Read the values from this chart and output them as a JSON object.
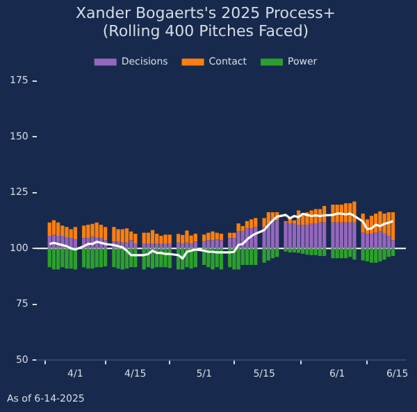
{
  "chart_data": {
    "type": "bar",
    "title": "Xander Bogaerts's 2025 Process+\n(Rolling 400 Pitches Faced)",
    "legend": "top",
    "x": [
      "--03-26",
      "--03-27",
      "--03-28",
      "--03-29",
      "--03-30",
      "--03-31",
      "--04-01",
      "--04-03",
      "--04-04",
      "--04-05",
      "--04-06",
      "--04-07",
      "--04-08",
      "--04-10",
      "--04-11",
      "--04-12",
      "--04-13",
      "--04-14",
      "--04-15",
      "--04-17",
      "--04-18",
      "--04-19",
      "--04-20",
      "--04-21",
      "--04-22",
      "--04-23",
      "--04-25",
      "--04-26",
      "--04-27",
      "--04-28",
      "--04-29",
      "--05-01",
      "--05-02",
      "--05-03",
      "--05-04",
      "--05-05",
      "--05-07",
      "--05-08",
      "--05-09",
      "--05-10",
      "--05-11",
      "--05-12",
      "--05-13",
      "--05-15",
      "--05-16",
      "--05-17",
      "--05-18",
      "--05-20",
      "--05-21",
      "--05-22",
      "--05-23",
      "--05-24",
      "--05-25",
      "--05-26",
      "--05-27",
      "--05-28",
      "--05-29",
      "--05-31",
      "--06-01",
      "--06-02",
      "--06-03",
      "--06-04",
      "--06-05",
      "--06-07",
      "--06-08",
      "--06-09",
      "--06-10",
      "--06-11",
      "--06-12",
      "--06-13",
      "--06-14"
    ],
    "series": [
      {
        "name": "Decisions",
        "color": "#9467bd",
        "base": [
          100,
          100,
          100,
          100,
          100,
          100,
          100,
          100,
          100,
          100,
          100,
          100,
          100,
          100,
          100,
          100,
          100,
          100,
          100,
          100,
          100,
          100,
          100,
          100,
          100,
          100,
          100,
          100,
          100,
          100,
          100,
          100,
          100,
          100,
          100,
          100,
          100,
          100,
          100,
          100,
          100,
          100,
          100,
          100,
          100,
          100,
          100,
          100,
          100,
          100,
          100,
          100,
          100,
          100,
          100,
          100,
          100,
          100,
          100,
          100,
          100,
          100,
          100,
          100,
          100,
          100,
          100,
          100,
          100,
          100,
          100
        ],
        "values": [
          5.6,
          6,
          5.6,
          5.6,
          5,
          4.6,
          4,
          4.6,
          4.6,
          5.2,
          5,
          4.6,
          3.6,
          3,
          3,
          2.6,
          2.6,
          3.6,
          2.2,
          2,
          2,
          2.2,
          2,
          2,
          2,
          2,
          2.6,
          2,
          2.6,
          2,
          3,
          3.2,
          3.6,
          3.6,
          4,
          3.6,
          4.6,
          4.6,
          7.6,
          7.6,
          9,
          9,
          9.6,
          9.6,
          11,
          12.2,
          12.6,
          11.6,
          11,
          11,
          10.6,
          10.6,
          10.6,
          11,
          11,
          11.6,
          11.6,
          11.6,
          11.6,
          11.6,
          11.6,
          11.6,
          11.6,
          7,
          6.6,
          6.6,
          7,
          7.6,
          6.6,
          5.6,
          3.6
        ]
      },
      {
        "name": "Contact",
        "color": "#ff7f0e",
        "base": [
          105.6,
          106,
          105.6,
          105.6,
          105,
          104.6,
          104,
          104.6,
          104.6,
          105.2,
          105,
          104.6,
          103.6,
          103,
          103,
          102.6,
          102.6,
          103.6,
          102.2,
          102,
          102,
          102.2,
          102,
          102,
          102,
          102,
          102.6,
          102,
          102.6,
          102,
          103,
          103.2,
          103.6,
          103.6,
          104,
          103.6,
          104.6,
          104.6,
          107.6,
          107.6,
          109,
          109,
          109.6,
          109.6,
          111,
          112.2,
          112.6,
          111.6,
          111,
          111,
          110.6,
          110.6,
          110.6,
          111,
          111,
          111.6,
          111.6,
          111.6,
          111.6,
          111.6,
          111.6,
          111.6,
          111.6,
          107,
          106.6,
          106.6,
          107,
          107.6,
          106.6,
          105.6,
          103.6
        ],
        "values": [
          6,
          6.6,
          6,
          4.6,
          4.6,
          4,
          5.6,
          5.6,
          6,
          5.8,
          6.6,
          6,
          6,
          6.6,
          5.6,
          6,
          6.4,
          4,
          4.4,
          5,
          5,
          6,
          4.6,
          3.6,
          4.2,
          4.2,
          3.9,
          4,
          5.4,
          3.8,
          3.6,
          3,
          3.4,
          4,
          3,
          3,
          2.4,
          2.4,
          3.6,
          2.4,
          3.2,
          4,
          4,
          4,
          5.2,
          4,
          3.6,
          0.6,
          2.6,
          1.6,
          6.4,
          5,
          5.6,
          6,
          6.6,
          6,
          7.4,
          8,
          8,
          8,
          8.6,
          8.6,
          9.4,
          8.6,
          6.4,
          8,
          8.6,
          9,
          9,
          10.6,
          12.6
        ]
      },
      {
        "name": "Power",
        "color": "#2ca02c",
        "base": [
          100,
          100,
          100,
          100,
          100,
          100,
          100,
          100,
          100,
          100,
          100,
          100,
          100,
          100,
          100,
          100,
          100,
          100,
          100,
          100,
          100,
          100,
          100,
          100,
          100,
          100,
          100,
          100,
          100,
          100,
          100,
          100,
          100,
          100,
          100,
          100,
          100,
          100,
          100,
          100,
          100,
          100,
          100,
          100,
          100,
          100,
          100,
          100,
          100,
          100,
          100,
          100,
          100,
          100,
          100,
          100,
          100,
          100,
          100,
          100,
          100,
          100,
          100,
          100,
          100,
          100,
          100,
          100,
          100,
          100,
          100
        ],
        "values": [
          -8.4,
          -9.4,
          -9.4,
          -8.4,
          -9,
          -9,
          -9.4,
          -8.4,
          -9,
          -9,
          -8.4,
          -8.4,
          -8,
          -8.4,
          -9,
          -9.4,
          -9,
          -8.4,
          -8.4,
          -9.4,
          -8.4,
          -9,
          -8.4,
          -8.4,
          -8.4,
          -8.8,
          -9.4,
          -9.4,
          -8.4,
          -9,
          -8.4,
          -7.4,
          -8.4,
          -9.4,
          -8.4,
          -9.4,
          -8.4,
          -9.4,
          -9.4,
          -7.4,
          -7.4,
          -7.4,
          -7.4,
          -6.4,
          -5.4,
          -4.4,
          -3.8,
          -1.4,
          -1.8,
          -1.8,
          -2,
          -2.4,
          -2.8,
          -3,
          -3,
          -3.4,
          -3.4,
          -4.4,
          -4.4,
          -4.4,
          -4.4,
          -3.8,
          -5,
          -5.4,
          -5.8,
          -6.4,
          -6.4,
          -5.8,
          -5,
          -3.8,
          -3.4
        ]
      },
      {
        "type": "line",
        "color": "#ffffff",
        "values": [
          102,
          102.5,
          102,
          101.5,
          101,
          100,
          99.5,
          101,
          102,
          102,
          103,
          102.5,
          102,
          101.5,
          101,
          100.5,
          99,
          97,
          97,
          97,
          97.5,
          99,
          98,
          98,
          97.5,
          97.5,
          97,
          95.5,
          98.5,
          99,
          99.5,
          99,
          98.5,
          98.5,
          98.2,
          98.2,
          98.2,
          98.5,
          101.6,
          102,
          104,
          105.5,
          106.6,
          108.2,
          110.5,
          112.5,
          114.2,
          115,
          113.5,
          114.5,
          114,
          115.5,
          115,
          114.5,
          114.8,
          114.5,
          114.8,
          115,
          115.6,
          115.6,
          115.2,
          115.6,
          114.5,
          112,
          108.6,
          109,
          110.6,
          110,
          111,
          111.5,
          112.2
        ]
      }
    ],
    "xticks": [
      {
        "value": "--04-01",
        "label": "4/1"
      },
      {
        "value": "--04-15",
        "label": "4/15"
      },
      {
        "value": "--05-01",
        "label": "5/1"
      },
      {
        "value": "--05-15",
        "label": "5/15"
      },
      {
        "value": "--06-01",
        "label": "6/1"
      },
      {
        "value": "--06-15",
        "label": "6/15"
      }
    ],
    "xlim": [
      "--03-23",
      "--06-17"
    ],
    "ylim": [
      50,
      175
    ],
    "yticks": [
      50,
      75,
      100,
      125,
      150,
      175
    ],
    "ref_lines": [
      {
        "axis": "y",
        "value": 100,
        "color": "#e6e6e6"
      }
    ],
    "annotations": [
      "As of 6-14-2025"
    ]
  }
}
